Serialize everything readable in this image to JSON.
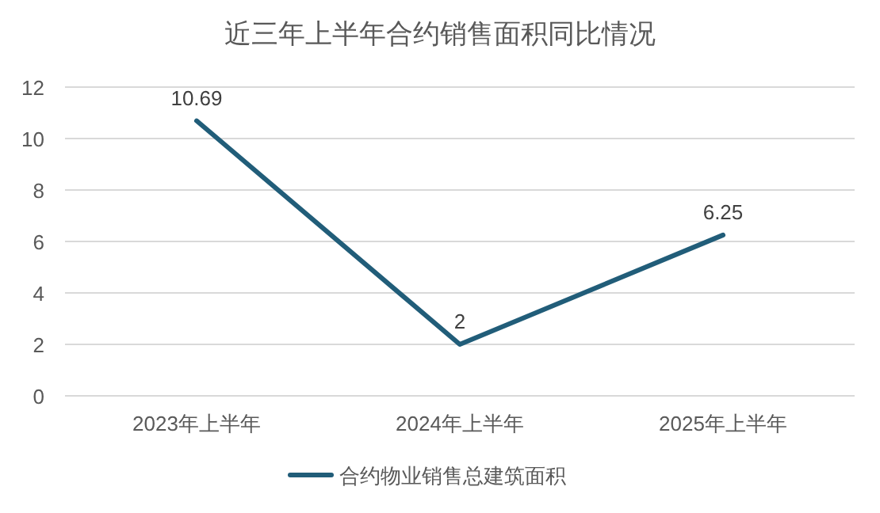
{
  "chart_data": {
    "type": "line",
    "title": "近三年上半年合约销售面积同比情况",
    "categories": [
      "2023年上半年",
      "2024年上半年",
      "2025年上半年"
    ],
    "series": [
      {
        "name": "合约物业销售总建筑面积",
        "color": "#215d79",
        "values": [
          10.69,
          2,
          6.25
        ]
      }
    ],
    "ylim": [
      0,
      12
    ],
    "yticks": [
      0,
      2,
      4,
      6,
      8,
      10,
      12
    ],
    "grid": "y",
    "legend": "bottom",
    "data_labels": true
  }
}
